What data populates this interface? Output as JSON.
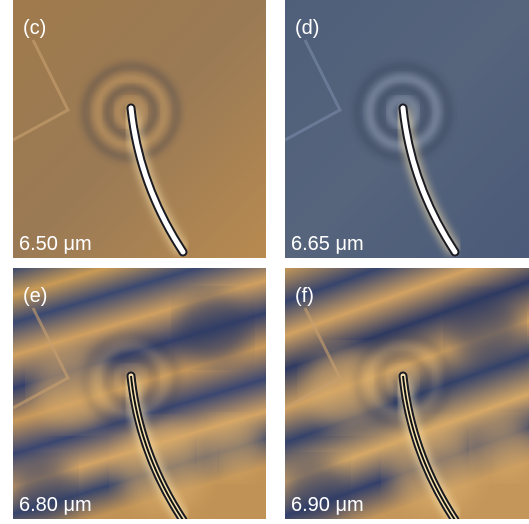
{
  "panels": [
    {
      "label": "(c)",
      "wavelength": "6.50 μm"
    },
    {
      "label": "(d)",
      "wavelength": "6.65 μm"
    },
    {
      "label": "(e)",
      "wavelength": "6.80 μm"
    },
    {
      "label": "(f)",
      "wavelength": "6.90 μm"
    }
  ]
}
